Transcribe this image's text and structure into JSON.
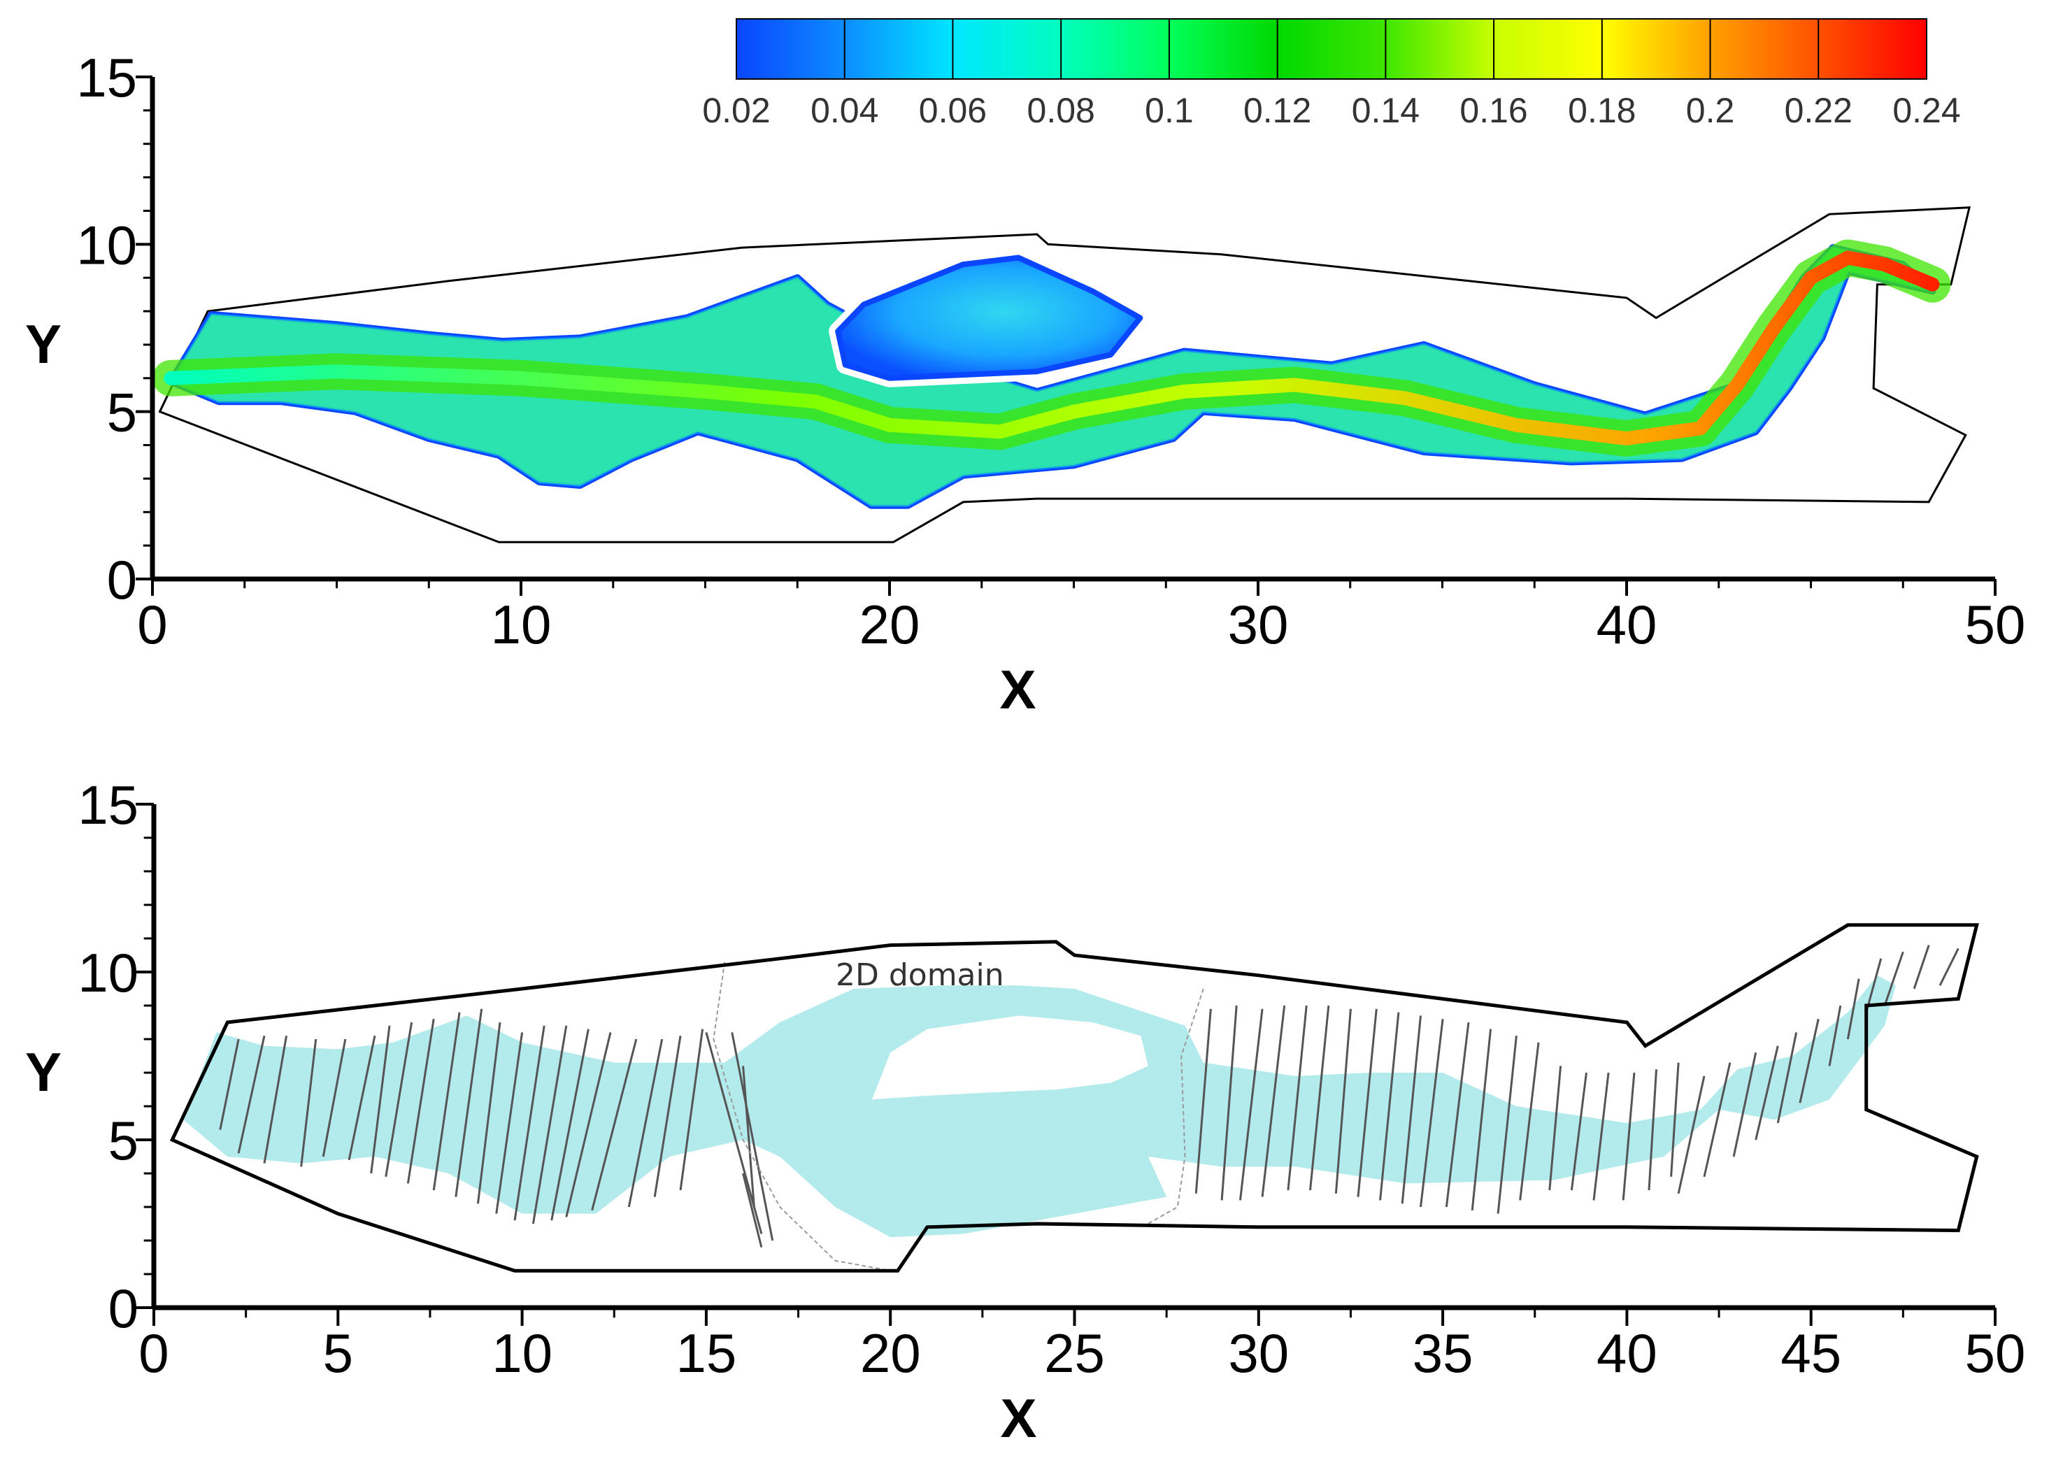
{
  "chart_data": [
    {
      "type": "heatmap",
      "panel": "top",
      "title": "",
      "xlabel": "X",
      "ylabel": "Y",
      "xlim": [
        0,
        50
      ],
      "ylim": [
        0,
        15
      ],
      "x_ticks": [
        0,
        10,
        20,
        30,
        40,
        50
      ],
      "y_ticks": [
        0,
        5,
        10,
        15
      ],
      "colorbar": {
        "min": 0.02,
        "max": 0.24,
        "tick_labels": [
          "0.02",
          "0.04",
          "0.06",
          "0.08",
          "0.1",
          "0.12",
          "0.14",
          "0.16",
          "0.18",
          "0.2",
          "0.22",
          "0.24"
        ],
        "colors": [
          "#0a46ff",
          "#0d8cff",
          "#00e6ff",
          "#00ffbe",
          "#00ff5a",
          "#00d800",
          "#3fe600",
          "#c8ff00",
          "#ffff00",
          "#ffa000",
          "#ff5000",
          "#ff0000"
        ]
      },
      "domain_outline": [
        [
          0.2,
          5
        ],
        [
          1.5,
          8
        ],
        [
          8,
          8.9
        ],
        [
          16,
          9.9
        ],
        [
          24,
          10.3
        ],
        [
          24.3,
          10
        ],
        [
          29,
          9.7
        ],
        [
          40,
          8.4
        ],
        [
          40.8,
          7.8
        ],
        [
          45.5,
          10.9
        ],
        [
          49.3,
          11.1
        ],
        [
          48.8,
          8.8
        ],
        [
          46.8,
          8.8
        ],
        [
          46.7,
          5.7
        ],
        [
          49.2,
          4.3
        ],
        [
          48.2,
          2.3
        ],
        [
          40,
          2.4
        ],
        [
          28,
          2.4
        ],
        [
          24,
          2.4
        ],
        [
          22,
          2.3
        ],
        [
          20.1,
          1.1
        ],
        [
          9.4,
          1.1
        ],
        [
          0.2,
          5
        ]
      ],
      "flow_region": [
        [
          0.5,
          5.9
        ],
        [
          1.6,
          7.9
        ],
        [
          5,
          7.6
        ],
        [
          7.5,
          7.3
        ],
        [
          9.5,
          7.1
        ],
        [
          11.6,
          7.2
        ],
        [
          14.5,
          7.8
        ],
        [
          17.5,
          9.0
        ],
        [
          18.3,
          8.2
        ],
        [
          21,
          6.6
        ],
        [
          24,
          5.6
        ],
        [
          28,
          6.8
        ],
        [
          32,
          6.4
        ],
        [
          34.5,
          7.0
        ],
        [
          37.5,
          5.8
        ],
        [
          40.5,
          4.9
        ],
        [
          43.0,
          5.8
        ],
        [
          44.8,
          9.0
        ],
        [
          45.6,
          9.9
        ],
        [
          47.5,
          9.4
        ],
        [
          48.3,
          8.6
        ],
        [
          46.0,
          9.2
        ],
        [
          45.3,
          7.2
        ],
        [
          44.4,
          5.7
        ],
        [
          43.5,
          4.4
        ],
        [
          41.5,
          3.6
        ],
        [
          38.5,
          3.5
        ],
        [
          34.5,
          3.8
        ],
        [
          31.0,
          4.8
        ],
        [
          28.5,
          5.0
        ],
        [
          27.7,
          4.2
        ],
        [
          25.0,
          3.4
        ],
        [
          22.0,
          3.1
        ],
        [
          20.5,
          2.2
        ],
        [
          19.5,
          2.2
        ],
        [
          17.5,
          3.6
        ],
        [
          14.8,
          4.4
        ],
        [
          13.0,
          3.6
        ],
        [
          11.6,
          2.8
        ],
        [
          10.5,
          2.9
        ],
        [
          9.4,
          3.7
        ],
        [
          7.5,
          4.2
        ],
        [
          5.5,
          5.0
        ],
        [
          3.5,
          5.3
        ],
        [
          1.8,
          5.3
        ],
        [
          0.5,
          5.9
        ]
      ],
      "island": [
        [
          18.6,
          7.4
        ],
        [
          19.3,
          8.2
        ],
        [
          22,
          9.4
        ],
        [
          23.5,
          9.6
        ],
        [
          25.5,
          8.6
        ],
        [
          26.8,
          7.8
        ],
        [
          26.0,
          6.7
        ],
        [
          24.0,
          6.2
        ],
        [
          22.0,
          6.1
        ],
        [
          20.0,
          6.0
        ],
        [
          18.8,
          6.4
        ],
        [
          18.6,
          7.4
        ]
      ],
      "core_path": [
        [
          0.5,
          6.0
        ],
        [
          5,
          6.2
        ],
        [
          10,
          6.0
        ],
        [
          15,
          5.6
        ],
        [
          18,
          5.3
        ],
        [
          20,
          4.6
        ],
        [
          23,
          4.4
        ],
        [
          25,
          5.0
        ],
        [
          28,
          5.6
        ],
        [
          31,
          5.8
        ],
        [
          34,
          5.4
        ],
        [
          37,
          4.6
        ],
        [
          40,
          4.2
        ],
        [
          42,
          4.5
        ],
        [
          43,
          5.8
        ],
        [
          44,
          7.5
        ],
        [
          45,
          9.0
        ],
        [
          46,
          9.6
        ],
        [
          47,
          9.4
        ],
        [
          48.3,
          8.8
        ]
      ]
    },
    {
      "type": "diagram",
      "panel": "bottom",
      "xlabel": "X",
      "ylabel": "Y",
      "xlim": [
        0,
        50
      ],
      "ylim": [
        0,
        15
      ],
      "x_ticks": [
        0,
        5,
        10,
        15,
        20,
        25,
        30,
        35,
        40,
        45,
        50
      ],
      "y_ticks": [
        0,
        5,
        10,
        15
      ],
      "annotation": "2D domain",
      "channel_color": "#b3eaec",
      "cross_section_color": "#555555",
      "domain_outline": [
        [
          0.5,
          5
        ],
        [
          2,
          8.5
        ],
        [
          10,
          9.5
        ],
        [
          17,
          10.4
        ],
        [
          20,
          10.8
        ],
        [
          24.5,
          10.9
        ],
        [
          25,
          10.5
        ],
        [
          30,
          9.9
        ],
        [
          40,
          8.5
        ],
        [
          40.5,
          7.8
        ],
        [
          46,
          11.4
        ],
        [
          49.5,
          11.4
        ],
        [
          49,
          9.2
        ],
        [
          46.5,
          9.0
        ],
        [
          46.5,
          5.9
        ],
        [
          49.5,
          4.5
        ],
        [
          49,
          2.3
        ],
        [
          40,
          2.4
        ],
        [
          30,
          2.4
        ],
        [
          24,
          2.5
        ],
        [
          21,
          2.4
        ],
        [
          20.2,
          1.1
        ],
        [
          9.8,
          1.1
        ],
        [
          5,
          2.8
        ],
        [
          0.5,
          5
        ]
      ],
      "channel_region": [
        [
          0.8,
          5.6
        ],
        [
          1.7,
          8.2
        ],
        [
          3,
          7.8
        ],
        [
          5,
          7.7
        ],
        [
          6.5,
          7.9
        ],
        [
          8.5,
          8.7
        ],
        [
          10,
          7.9
        ],
        [
          12.5,
          7.3
        ],
        [
          15.5,
          7.3
        ],
        [
          17,
          8.5
        ],
        [
          19,
          9.5
        ],
        [
          21.5,
          9.6
        ],
        [
          23.5,
          9.6
        ],
        [
          25,
          9.5
        ],
        [
          28,
          8.4
        ],
        [
          28.5,
          7.3
        ],
        [
          31,
          6.9
        ],
        [
          33,
          7.0
        ],
        [
          35,
          7.0
        ],
        [
          37,
          6.0
        ],
        [
          40,
          5.5
        ],
        [
          42,
          5.9
        ],
        [
          43,
          7.1
        ],
        [
          44.5,
          7.5
        ],
        [
          46,
          8.8
        ],
        [
          46.8,
          9.9
        ],
        [
          47.3,
          9.6
        ],
        [
          47,
          8.4
        ],
        [
          45.5,
          6.2
        ],
        [
          44,
          5.6
        ],
        [
          42.5,
          5.9
        ],
        [
          41,
          4.5
        ],
        [
          38,
          3.8
        ],
        [
          34,
          3.7
        ],
        [
          31,
          4.2
        ],
        [
          29,
          4.2
        ],
        [
          27,
          4.5
        ],
        [
          27.5,
          3.3
        ],
        [
          25,
          2.8
        ],
        [
          22,
          2.2
        ],
        [
          20,
          2.1
        ],
        [
          18.5,
          3.0
        ],
        [
          17,
          4.5
        ],
        [
          16,
          5.0
        ],
        [
          14,
          4.5
        ],
        [
          12,
          2.8
        ],
        [
          10,
          2.8
        ],
        [
          8,
          4.0
        ],
        [
          6,
          4.5
        ],
        [
          4,
          4.3
        ],
        [
          2,
          4.5
        ],
        [
          0.8,
          5.6
        ]
      ],
      "island": [
        [
          19.5,
          6.2
        ],
        [
          20,
          7.6
        ],
        [
          21,
          8.3
        ],
        [
          23.5,
          8.7
        ],
        [
          25.5,
          8.5
        ],
        [
          26.8,
          8.1
        ],
        [
          27.0,
          7.2
        ],
        [
          26.0,
          6.7
        ],
        [
          24.5,
          6.5
        ],
        [
          22.5,
          6.4
        ],
        [
          20.8,
          6.3
        ],
        [
          19.5,
          6.2
        ]
      ],
      "cross_sections": [
        [
          [
            2.3,
            8.0
          ],
          [
            1.8,
            5.3
          ]
        ],
        [
          [
            3.0,
            8.1
          ],
          [
            2.3,
            4.6
          ]
        ],
        [
          [
            3.6,
            8.1
          ],
          [
            3.0,
            4.3
          ]
        ],
        [
          [
            4.4,
            8.0
          ],
          [
            4.0,
            4.2
          ]
        ],
        [
          [
            5.2,
            8.0
          ],
          [
            4.6,
            4.5
          ]
        ],
        [
          [
            6.0,
            8.1
          ],
          [
            5.3,
            4.4
          ]
        ],
        [
          [
            6.4,
            8.4
          ],
          [
            5.9,
            4.0
          ]
        ],
        [
          [
            7.0,
            8.5
          ],
          [
            6.3,
            3.9
          ]
        ],
        [
          [
            7.6,
            8.6
          ],
          [
            6.9,
            3.7
          ]
        ],
        [
          [
            8.3,
            8.8
          ],
          [
            7.6,
            3.5
          ]
        ],
        [
          [
            8.9,
            8.9
          ],
          [
            8.2,
            3.3
          ]
        ],
        [
          [
            9.4,
            8.5
          ],
          [
            8.8,
            3.1
          ]
        ],
        [
          [
            10.0,
            8.2
          ],
          [
            9.3,
            2.8
          ]
        ],
        [
          [
            10.6,
            8.4
          ],
          [
            9.8,
            2.6
          ]
        ],
        [
          [
            11.2,
            8.4
          ],
          [
            10.3,
            2.5
          ]
        ],
        [
          [
            11.8,
            8.3
          ],
          [
            10.8,
            2.6
          ]
        ],
        [
          [
            12.4,
            8.2
          ],
          [
            11.2,
            2.7
          ]
        ],
        [
          [
            13.1,
            8.0
          ],
          [
            11.9,
            2.9
          ]
        ],
        [
          [
            13.8,
            8.0
          ],
          [
            12.9,
            3.0
          ]
        ],
        [
          [
            14.3,
            8.1
          ],
          [
            13.6,
            3.3
          ]
        ],
        [
          [
            14.9,
            8.3
          ],
          [
            14.3,
            3.5
          ]
        ],
        [
          [
            15.0,
            8.2
          ],
          [
            16.5,
            2.2
          ]
        ],
        [
          [
            15.7,
            8.2
          ],
          [
            16.8,
            2.0
          ]
        ],
        [
          [
            16.0,
            7.2
          ],
          [
            16.3,
            3.0
          ]
        ],
        [
          [
            16.0,
            4.0
          ],
          [
            16.5,
            1.8
          ]
        ],
        [
          [
            28.7,
            8.9
          ],
          [
            28.3,
            3.4
          ]
        ],
        [
          [
            29.4,
            9.0
          ],
          [
            29.0,
            3.2
          ]
        ],
        [
          [
            30.1,
            8.9
          ],
          [
            29.5,
            3.2
          ]
        ],
        [
          [
            30.7,
            9.0
          ],
          [
            30.1,
            3.3
          ]
        ],
        [
          [
            31.3,
            9.0
          ],
          [
            30.8,
            3.5
          ]
        ],
        [
          [
            31.9,
            9.0
          ],
          [
            31.4,
            3.5
          ]
        ],
        [
          [
            32.5,
            8.9
          ],
          [
            32.1,
            3.4
          ]
        ],
        [
          [
            33.2,
            8.9
          ],
          [
            32.7,
            3.3
          ]
        ],
        [
          [
            33.8,
            8.8
          ],
          [
            33.3,
            3.2
          ]
        ],
        [
          [
            34.4,
            8.7
          ],
          [
            33.9,
            3.1
          ]
        ],
        [
          [
            35.0,
            8.6
          ],
          [
            34.4,
            3.0
          ]
        ],
        [
          [
            35.7,
            8.5
          ],
          [
            35.1,
            3.0
          ]
        ],
        [
          [
            36.3,
            8.3
          ],
          [
            35.8,
            2.9
          ]
        ],
        [
          [
            37.0,
            8.1
          ],
          [
            36.5,
            2.8
          ]
        ],
        [
          [
            37.6,
            7.9
          ],
          [
            37.1,
            3.2
          ]
        ],
        [
          [
            38.2,
            7.2
          ],
          [
            37.9,
            3.5
          ]
        ],
        [
          [
            38.9,
            7.0
          ],
          [
            38.5,
            3.5
          ]
        ],
        [
          [
            39.5,
            7.0
          ],
          [
            39.1,
            3.2
          ]
        ],
        [
          [
            40.2,
            7.0
          ],
          [
            39.9,
            3.2
          ]
        ],
        [
          [
            40.8,
            7.1
          ],
          [
            40.6,
            3.5
          ]
        ],
        [
          [
            41.4,
            7.3
          ],
          [
            41.2,
            3.9
          ]
        ],
        [
          [
            42.1,
            6.9
          ],
          [
            41.4,
            3.4
          ]
        ],
        [
          [
            42.8,
            7.3
          ],
          [
            42.1,
            3.9
          ]
        ],
        [
          [
            43.5,
            7.6
          ],
          [
            42.9,
            4.5
          ]
        ],
        [
          [
            44.1,
            7.8
          ],
          [
            43.5,
            5.0
          ]
        ],
        [
          [
            44.6,
            8.2
          ],
          [
            44.1,
            5.5
          ]
        ],
        [
          [
            45.2,
            8.6
          ],
          [
            44.7,
            6.1
          ]
        ],
        [
          [
            45.8,
            9.0
          ],
          [
            45.5,
            7.2
          ]
        ],
        [
          [
            46.3,
            9.8
          ],
          [
            46.0,
            8.0
          ]
        ],
        [
          [
            46.9,
            10.4
          ],
          [
            46.5,
            8.8
          ]
        ],
        [
          [
            47.5,
            10.6
          ],
          [
            47.0,
            9.0
          ]
        ],
        [
          [
            48.2,
            10.8
          ],
          [
            47.8,
            9.5
          ]
        ],
        [
          [
            49.0,
            10.7
          ],
          [
            48.5,
            9.6
          ]
        ]
      ],
      "interface_left": [
        [
          15.5,
          10.3
        ],
        [
          15.2,
          8.0
        ],
        [
          16.0,
          5.0
        ],
        [
          17.0,
          3.0
        ],
        [
          18.5,
          1.4
        ],
        [
          20.0,
          1.1
        ]
      ],
      "interface_right": [
        [
          28.5,
          9.5
        ],
        [
          27.9,
          7.5
        ],
        [
          28.0,
          4.5
        ],
        [
          27.8,
          3.0
        ],
        [
          27.0,
          2.5
        ]
      ]
    }
  ]
}
